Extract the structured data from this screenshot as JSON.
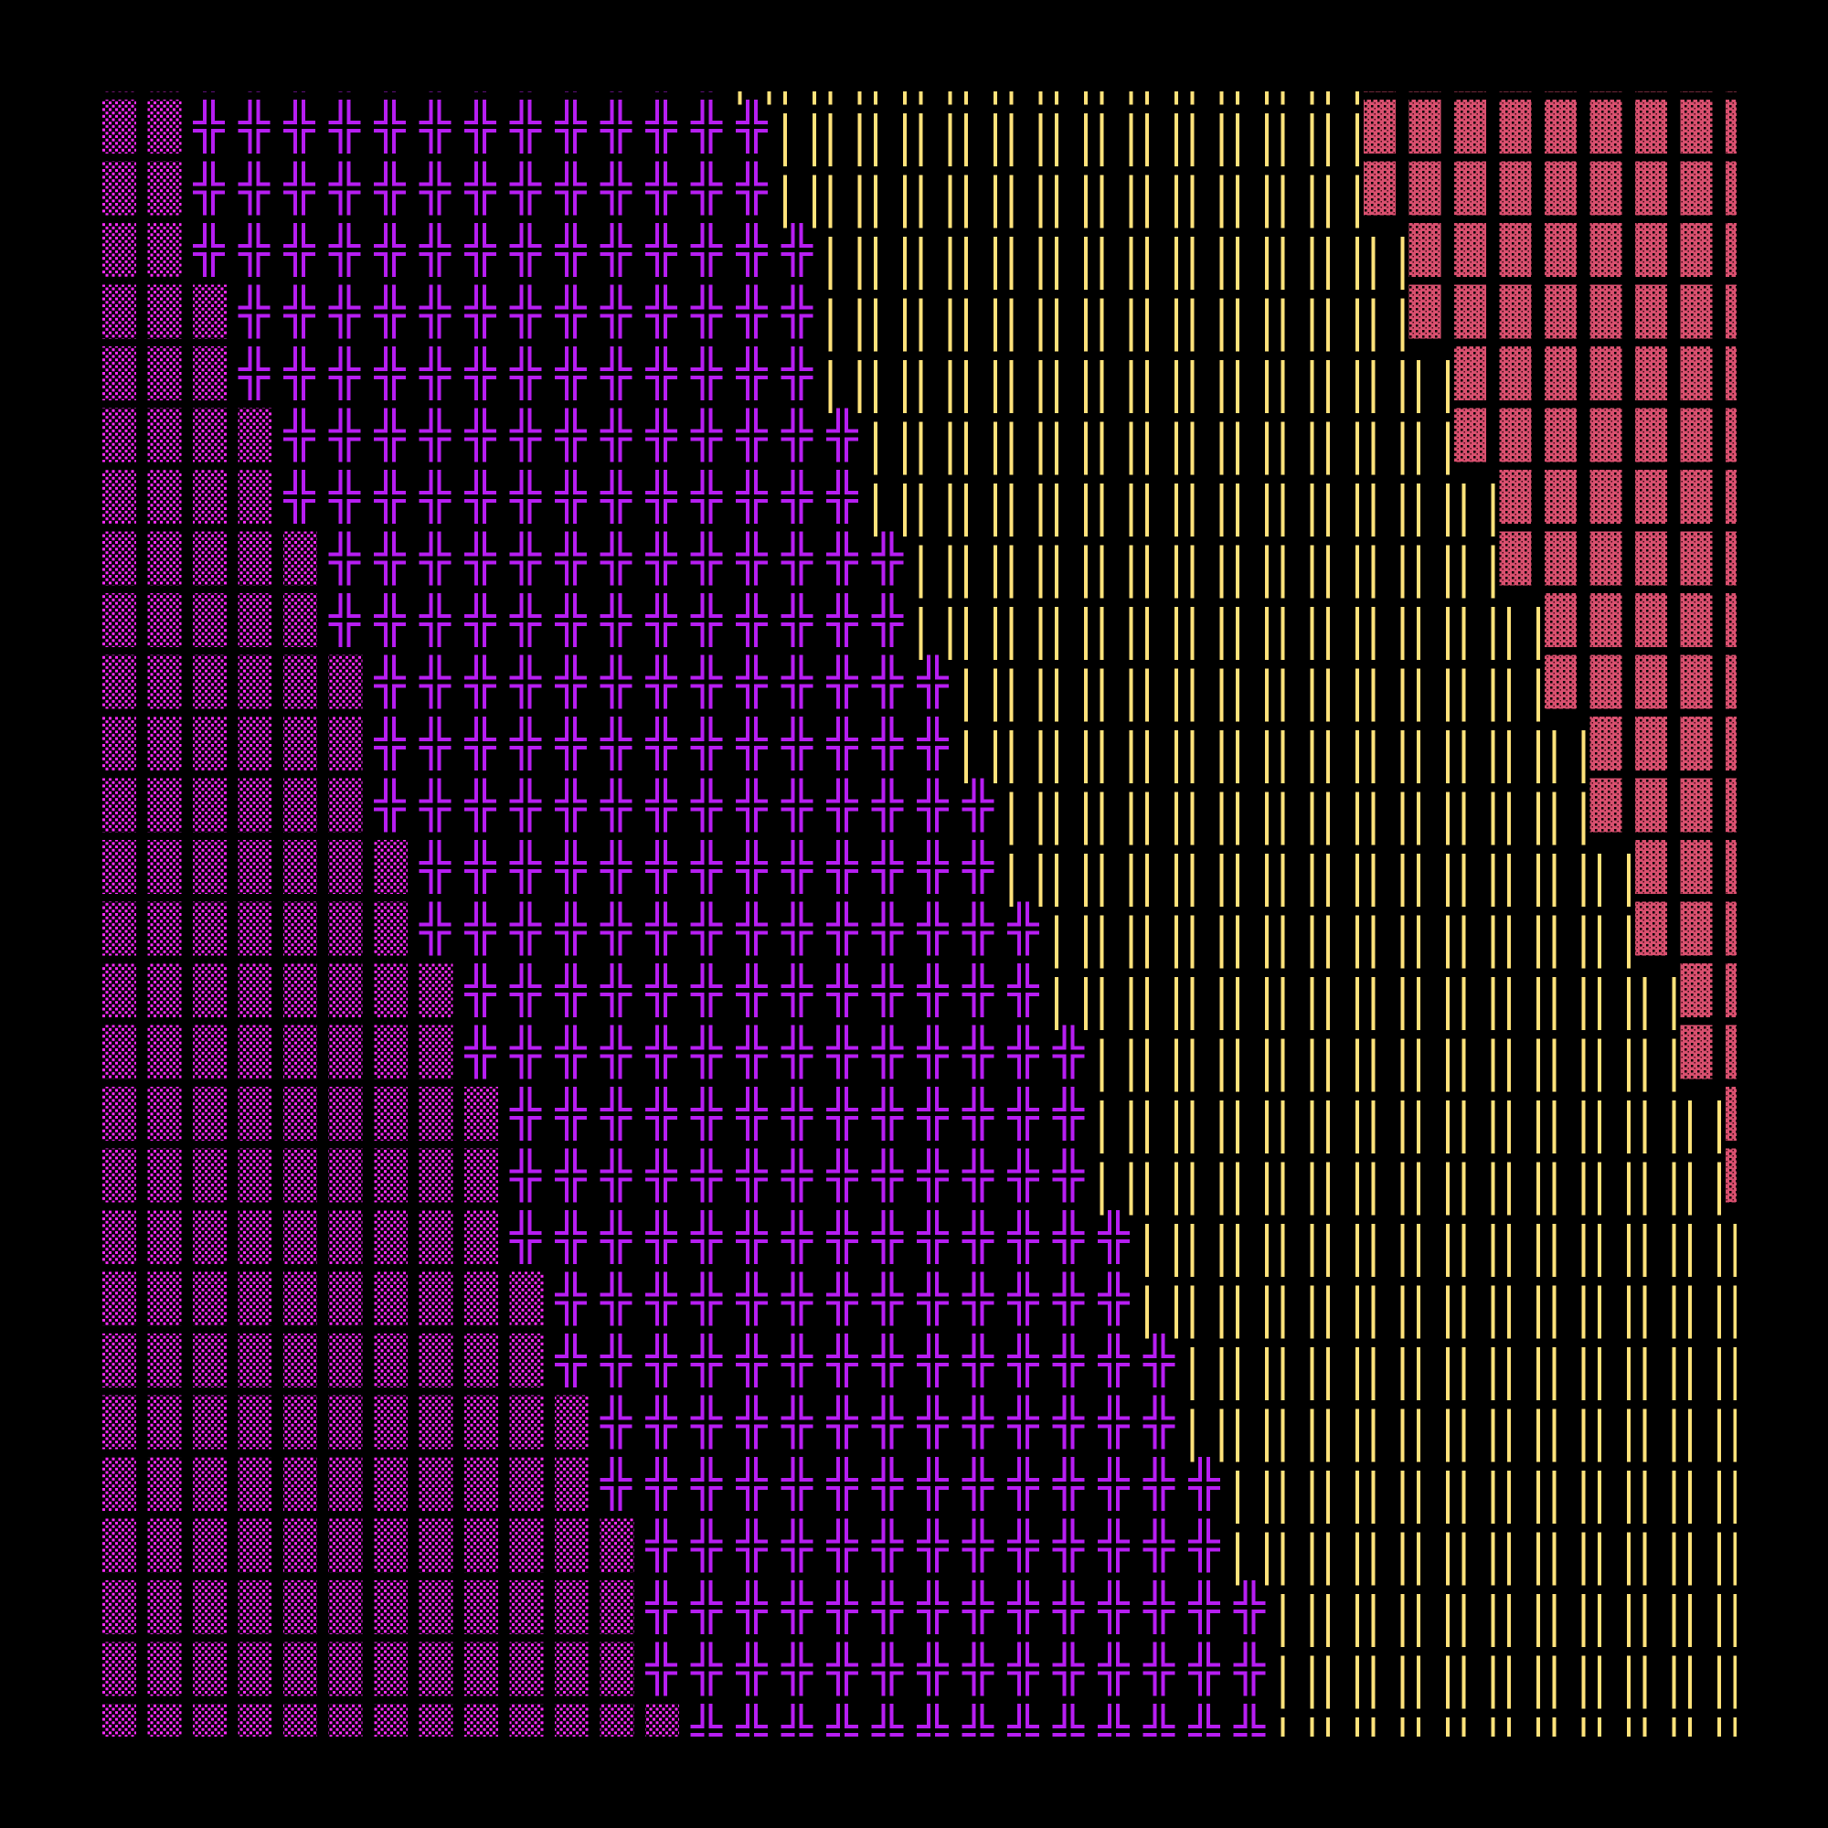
{
  "background": "#000000",
  "glyphs": [
    {
      "char": "░",
      "name": "light-shade",
      "color": "#ff2cff"
    },
    {
      "char": "╬",
      "name": "double-cross",
      "color": "#b71ef2"
    },
    {
      "char": "║",
      "name": "double-vertical",
      "color": "#ffe27a"
    },
    {
      "char": "▓",
      "name": "dark-shade",
      "color": "#d9506f"
    }
  ],
  "columns": 37,
  "rows": [
    [
      2,
      12,
      14,
      9
    ],
    [
      2,
      13,
      13,
      9
    ],
    [
      2,
      13,
      13,
      9
    ],
    [
      2,
      14,
      13,
      8
    ],
    [
      3,
      13,
      13,
      8
    ],
    [
      3,
      13,
      14,
      7
    ],
    [
      4,
      13,
      13,
      7
    ],
    [
      4,
      13,
      14,
      6
    ],
    [
      5,
      13,
      13,
      6
    ],
    [
      5,
      13,
      14,
      5
    ],
    [
      6,
      13,
      13,
      5
    ],
    [
      6,
      13,
      14,
      4
    ],
    [
      6,
      14,
      13,
      4
    ],
    [
      7,
      13,
      14,
      3
    ],
    [
      7,
      14,
      13,
      3
    ],
    [
      8,
      13,
      14,
      2
    ],
    [
      8,
      14,
      13,
      2
    ],
    [
      9,
      13,
      14,
      1
    ],
    [
      9,
      13,
      14,
      1
    ],
    [
      9,
      14,
      14,
      0
    ],
    [
      10,
      13,
      14,
      0
    ],
    [
      10,
      14,
      13,
      0
    ],
    [
      11,
      13,
      13,
      0
    ],
    [
      11,
      14,
      12,
      0
    ],
    [
      12,
      13,
      12,
      0
    ],
    [
      12,
      14,
      11,
      0
    ],
    [
      12,
      14,
      11,
      0
    ],
    [
      13,
      13,
      11,
      0
    ]
  ]
}
